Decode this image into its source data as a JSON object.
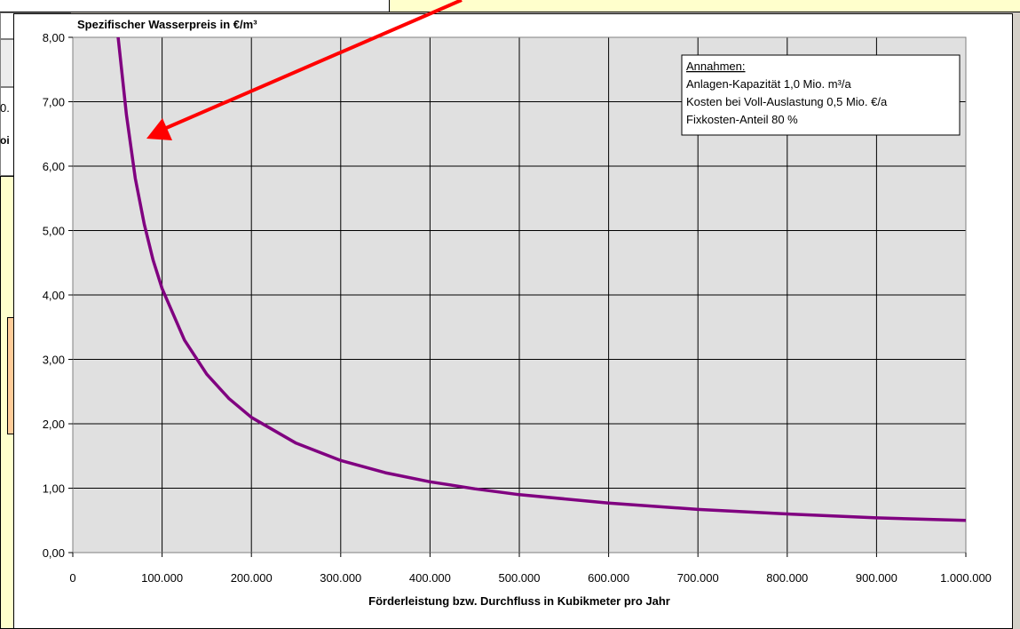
{
  "spreadsheet": {
    "cell_fragment_1": "0.",
    "cell_fragment_2": "oi"
  },
  "chart_data": {
    "type": "line",
    "title": "Spezifischer Wasserpreis in €/m³",
    "xlabel": "Förderleistung bzw. Durchfluss in Kubikmeter pro Jahr",
    "ylabel": "",
    "xlim": [
      0,
      1000000
    ],
    "ylim": [
      0,
      8
    ],
    "x_tick_values": [
      0,
      100000,
      200000,
      300000,
      400000,
      500000,
      600000,
      700000,
      800000,
      900000,
      1000000
    ],
    "x_tick_labels": [
      "0",
      "100.000",
      "200.000",
      "300.000",
      "400.000",
      "500.000",
      "600.000",
      "700.000",
      "800.000",
      "900.000",
      "1.000.000"
    ],
    "y_tick_values": [
      0,
      1,
      2,
      3,
      4,
      5,
      6,
      7,
      8
    ],
    "y_tick_labels": [
      "0,00",
      "1,00",
      "2,00",
      "3,00",
      "4,00",
      "5,00",
      "6,00",
      "7,00",
      "8,00"
    ],
    "grid": true,
    "series": [
      {
        "color": "#800080",
        "x": [
          50000,
          60000,
          70000,
          80000,
          90000,
          100000,
          125000,
          150000,
          175000,
          200000,
          250000,
          300000,
          350000,
          400000,
          450000,
          500000,
          600000,
          700000,
          800000,
          900000,
          1000000
        ],
        "y": [
          8.1,
          6.8,
          5.81,
          5.1,
          4.54,
          4.1,
          3.3,
          2.77,
          2.39,
          2.1,
          1.7,
          1.43,
          1.24,
          1.1,
          0.99,
          0.9,
          0.77,
          0.67,
          0.6,
          0.54,
          0.5
        ]
      }
    ],
    "annotation": {
      "heading": "Annahmen:",
      "lines": [
        "Anlagen-Kapazität 1,0 Mio. m³/a",
        "Kosten bei Voll-Auslastung 0,5 Mio. €/a",
        "Fixkosten-Anteil 80 %"
      ],
      "placement": "top-right"
    },
    "arrow_color": "#ff0000",
    "plot_background": "#e0e0e0"
  }
}
